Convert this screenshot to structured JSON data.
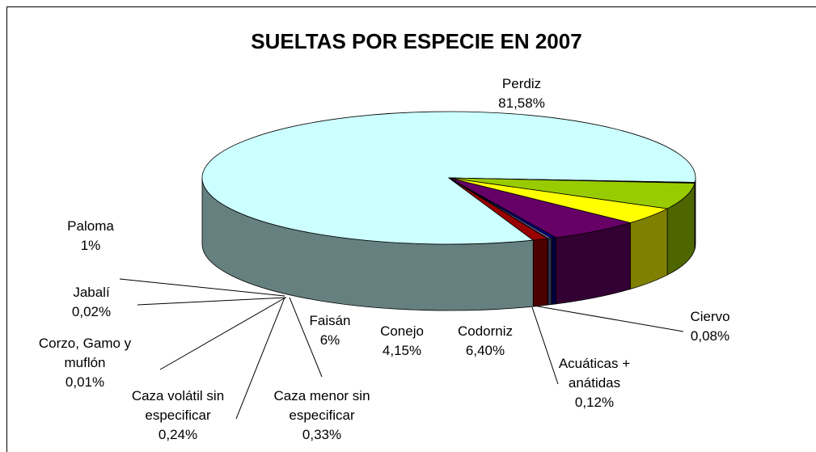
{
  "chart_data": {
    "type": "pie",
    "title": "SUELTAS POR ESPECIE EN 2007",
    "categories": [
      "Perdiz",
      "Ciervo",
      "Acuáticas + anátidas",
      "Codorniz",
      "Conejo",
      "Faisán",
      "Caza menor sin especificar",
      "Caza volátil sin especificar",
      "Corzo, Gamo y muflón",
      "Jabalí",
      "Paloma"
    ],
    "values": [
      81.58,
      0.08,
      0.12,
      6.4,
      4.15,
      6,
      0.33,
      0.24,
      0.01,
      0.02,
      1
    ],
    "value_labels": [
      "81,58%",
      "0,08%",
      "0,12%",
      "6,40%",
      "4,15%",
      "6%",
      "0,33%",
      "0,24%",
      "0,01%",
      "0,02%",
      "1%"
    ],
    "colors": [
      "#ccffff",
      "#993300",
      "#ff6600",
      "#99cc00",
      "#ffff00",
      "#660066",
      "#000080",
      "#666699",
      "#999999",
      "#003366",
      "#990000"
    ]
  }
}
